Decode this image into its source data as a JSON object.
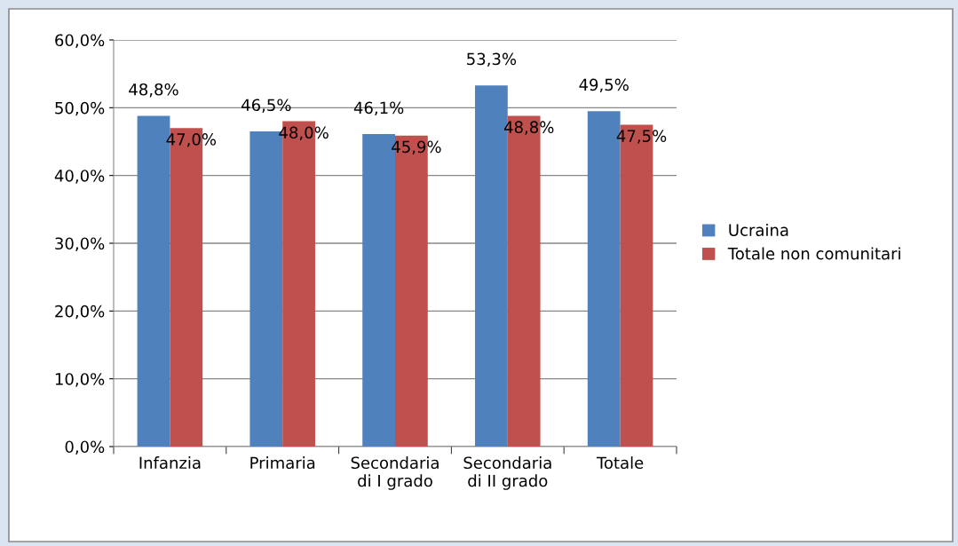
{
  "chart_data": {
    "type": "bar",
    "categories": [
      "Infanzia",
      "Primaria",
      "Secondaria\ndi I grado",
      "Secondaria\ndi II grado",
      "Totale"
    ],
    "series": [
      {
        "name": "Ucraina",
        "color": "#4f81bd",
        "values": [
          48.8,
          46.5,
          46.1,
          53.3,
          49.5
        ],
        "value_labels": [
          "48,8%",
          "46,5%",
          "46,1%",
          "53,3%",
          "49,5%"
        ]
      },
      {
        "name": "Totale non comunitari",
        "color": "#c0504d",
        "values": [
          47.0,
          48.0,
          45.9,
          48.8,
          47.5
        ],
        "value_labels": [
          "47,0%",
          "48,0%",
          "45,9%",
          "48,8%",
          "47,5%"
        ]
      }
    ],
    "ylim": [
      0,
      60
    ],
    "yticks": [
      {
        "value": 0,
        "label": "0,0%"
      },
      {
        "value": 10,
        "label": "10,0%"
      },
      {
        "value": 20,
        "label": "20,0%"
      },
      {
        "value": 30,
        "label": "30,0%"
      },
      {
        "value": 40,
        "label": "40,0%"
      },
      {
        "value": 50,
        "label": "50,0%"
      },
      {
        "value": 60,
        "label": "60,0%"
      }
    ],
    "grid": "y",
    "legend": "right"
  }
}
